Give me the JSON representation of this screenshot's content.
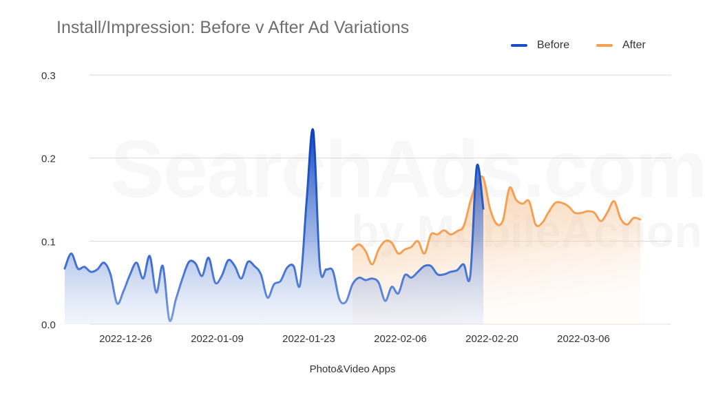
{
  "chart_data": {
    "type": "area",
    "title": "Install/Impression: Before v After Ad Variations",
    "xlabel": "Photo&Video Apps",
    "ylabel": "",
    "ylim": [
      0,
      0.3
    ],
    "yticks": [
      "0.0",
      "0.1",
      "0.2",
      "0.3"
    ],
    "ytick_values": [
      0,
      0.1,
      0.2,
      0.3
    ],
    "xticks": [
      "2022-12-26",
      "2022-01-09",
      "2022-01-23",
      "2022-02-06",
      "2022-02-20",
      "2022-03-06"
    ],
    "xtick_days_from_start": [
      9,
      23,
      37,
      51,
      65,
      79
    ],
    "x_start_date": "2022-12-17",
    "x_end_day": 88,
    "grid": true,
    "legend_position": "top-right",
    "series": [
      {
        "name": "Before",
        "color": "#1a4bc4",
        "start_day": 0,
        "values": [
          0.067,
          0.085,
          0.067,
          0.069,
          0.063,
          0.066,
          0.074,
          0.06,
          0.025,
          0.04,
          0.06,
          0.074,
          0.055,
          0.082,
          0.038,
          0.07,
          0.005,
          0.03,
          0.055,
          0.075,
          0.073,
          0.058,
          0.08,
          0.05,
          0.058,
          0.077,
          0.07,
          0.055,
          0.075,
          0.07,
          0.06,
          0.032,
          0.048,
          0.052,
          0.068,
          0.07,
          0.048,
          0.15,
          0.233,
          0.07,
          0.066,
          0.064,
          0.03,
          0.027,
          0.048,
          0.056,
          0.053,
          0.055,
          0.05,
          0.028,
          0.045,
          0.037,
          0.059,
          0.056,
          0.063,
          0.07,
          0.07,
          0.06,
          0.06,
          0.063,
          0.065,
          0.072,
          0.058,
          0.19,
          0.139
        ]
      },
      {
        "name": "After",
        "color": "#f4a054",
        "start_day": 44,
        "values": [
          0.09,
          0.096,
          0.088,
          0.072,
          0.09,
          0.1,
          0.098,
          0.085,
          0.09,
          0.093,
          0.1,
          0.085,
          0.108,
          0.108,
          0.113,
          0.108,
          0.112,
          0.118,
          0.147,
          0.17,
          0.176,
          0.14,
          0.121,
          0.125,
          0.164,
          0.15,
          0.145,
          0.148,
          0.12,
          0.122,
          0.135,
          0.146,
          0.146,
          0.142,
          0.134,
          0.134,
          0.136,
          0.134,
          0.124,
          0.135,
          0.148,
          0.127,
          0.12,
          0.128,
          0.126
        ]
      }
    ]
  }
}
